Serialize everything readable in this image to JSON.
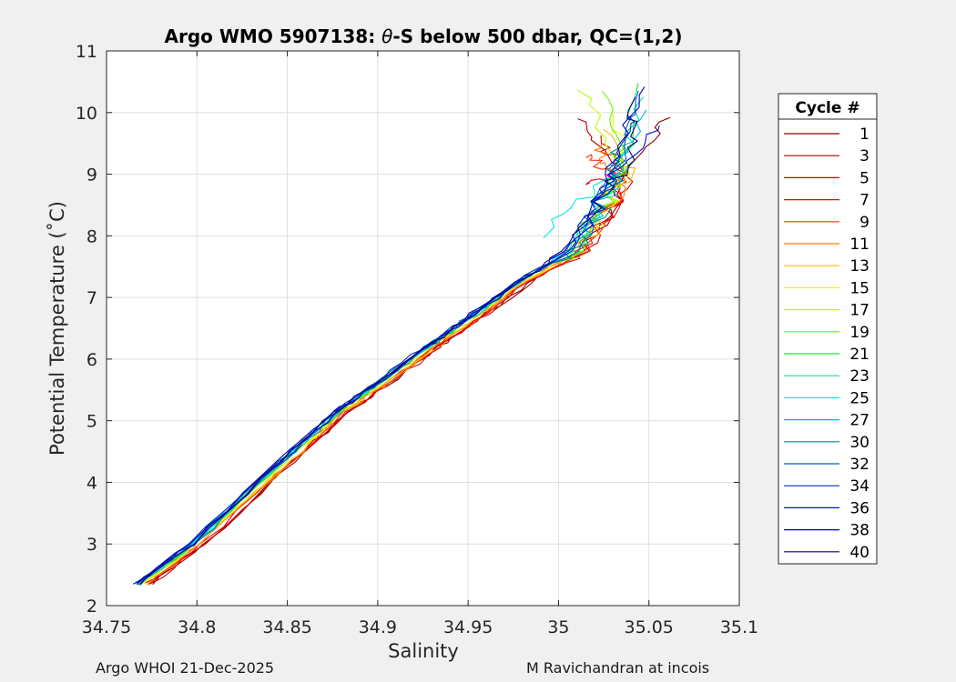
{
  "footer": {
    "left": "Argo WHOI 21-Dec-2025",
    "right": "M Ravichandran at incois"
  },
  "chart_data": {
    "type": "line",
    "title_prefix": "Argo WMO 5907138: ",
    "title_theta": "θ",
    "title_suffix": "-S below 500 dbar,  QC=(1,2)",
    "xlabel": "Salinity",
    "ylabel": "Potential Temperature (˚C)",
    "xlim": [
      34.75,
      35.1
    ],
    "ylim": [
      2,
      11
    ],
    "xticks": [
      34.75,
      34.8,
      34.85,
      34.9,
      34.95,
      35,
      35.05,
      35.1
    ],
    "xtick_labels": [
      "34.75",
      "34.8",
      "34.85",
      "34.9",
      "34.95",
      "35",
      "35.05",
      "35.1"
    ],
    "yticks": [
      2,
      3,
      4,
      5,
      6,
      7,
      8,
      9,
      10,
      11
    ],
    "ytick_labels": [
      "2",
      "3",
      "4",
      "5",
      "6",
      "7",
      "8",
      "9",
      "10",
      "11"
    ],
    "grid": true,
    "legend_title": "Cycle #",
    "legend_position": "outside-right",
    "base_profile": {
      "salinity": [
        34.77,
        34.8,
        34.85,
        34.88,
        34.9,
        34.93,
        34.95,
        34.98,
        35.01,
        35.025,
        35.035,
        35.04,
        35.045
      ],
      "temperature": [
        2.35,
        3.0,
        4.35,
        5.15,
        5.55,
        6.2,
        6.6,
        7.25,
        7.75,
        8.45,
        9.0,
        9.6,
        10.1
      ]
    },
    "series": [
      {
        "name": "1",
        "color": "#800000",
        "sal_offset": 0.004,
        "top_salinity": 35.062,
        "top_temperature": 9.95
      },
      {
        "name": "3",
        "color": "#a80000",
        "sal_offset": 0.004,
        "top_salinity": 35.01,
        "top_temperature": 9.9
      },
      {
        "name": "5",
        "color": "#d20000",
        "sal_offset": 0.004,
        "top_salinity": 35.022,
        "top_temperature": 9.6
      },
      {
        "name": "7",
        "color": "#f50000",
        "sal_offset": 0.003,
        "top_salinity": 35.015,
        "top_temperature": 8.8
      },
      {
        "name": "9",
        "color": "#ff3300",
        "sal_offset": 0.002,
        "top_salinity": 35.012,
        "top_temperature": 9.3
      },
      {
        "name": "11",
        "color": "#ff7a00",
        "sal_offset": 0.002,
        "top_salinity": 35.02,
        "top_temperature": 9.5
      },
      {
        "name": "13",
        "color": "#ffb800",
        "sal_offset": 0.001,
        "top_salinity": 35.028,
        "top_temperature": 9.7
      },
      {
        "name": "15",
        "color": "#ffee00",
        "sal_offset": 0.0,
        "top_salinity": 35.032,
        "top_temperature": 9.95
      },
      {
        "name": "17",
        "color": "#b8ff00",
        "sal_offset": -0.001,
        "top_salinity": 35.012,
        "top_temperature": 10.4
      },
      {
        "name": "19",
        "color": "#5cff00",
        "sal_offset": -0.002,
        "top_salinity": 35.025,
        "top_temperature": 10.35
      },
      {
        "name": "21",
        "color": "#18e640",
        "sal_offset": -0.002,
        "top_salinity": 35.044,
        "top_temperature": 10.45
      },
      {
        "name": "23",
        "color": "#00e0a0",
        "sal_offset": -0.003,
        "top_salinity": 35.046,
        "top_temperature": 10.2
      },
      {
        "name": "25",
        "color": "#00e8e8",
        "sal_offset": -0.003,
        "top_salinity": 34.99,
        "top_temperature": 8.0
      },
      {
        "name": "27",
        "color": "#00b8d8",
        "sal_offset": -0.002,
        "top_salinity": 35.046,
        "top_temperature": 10.05
      },
      {
        "name": "30",
        "color": "#008890",
        "sal_offset": -0.002,
        "top_salinity": 35.03,
        "top_temperature": 9.4
      },
      {
        "name": "32",
        "color": "#0060c8",
        "sal_offset": -0.003,
        "top_salinity": 35.048,
        "top_temperature": 10.3
      },
      {
        "name": "34",
        "color": "#0030b0",
        "sal_offset": -0.004,
        "top_salinity": 35.041,
        "top_temperature": 10.0
      },
      {
        "name": "36",
        "color": "#0010e0",
        "sal_offset": -0.003,
        "top_salinity": 35.058,
        "top_temperature": 9.8
      },
      {
        "name": "38",
        "color": "#0000c8",
        "sal_offset": -0.004,
        "top_salinity": 35.049,
        "top_temperature": 10.4
      },
      {
        "name": "40",
        "color": "#00007a",
        "sal_offset": -0.003,
        "top_salinity": 35.043,
        "top_temperature": 10.2
      }
    ]
  }
}
